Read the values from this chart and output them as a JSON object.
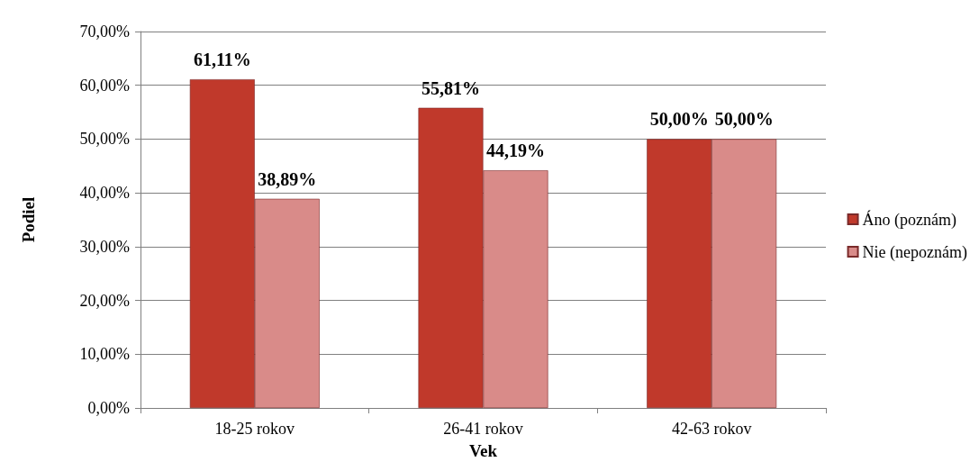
{
  "chart_data": {
    "type": "bar",
    "xlabel": "Vek",
    "ylabel": "Podiel",
    "categories": [
      "18-25 rokov",
      "26-41 rokov",
      "42-63 rokov"
    ],
    "series": [
      {
        "name": "Áno (poznám)",
        "color": "#c0392b",
        "values": [
          61.11,
          55.81,
          50.0
        ],
        "value_labels": [
          "61,11%",
          "55,81%",
          "50,00%"
        ]
      },
      {
        "name": "Nie (nepoznám)",
        "color": "#d98b89",
        "values": [
          38.89,
          44.19,
          50.0
        ],
        "value_labels": [
          "38,89%",
          "44,19%",
          "50,00%"
        ]
      }
    ],
    "ylim": [
      0,
      70
    ],
    "yticks": [
      {
        "value": 0,
        "label": "0,00%"
      },
      {
        "value": 10,
        "label": "10,00%"
      },
      {
        "value": 20,
        "label": "20,00%"
      },
      {
        "value": 30,
        "label": "30,00%"
      },
      {
        "value": 40,
        "label": "40,00%"
      },
      {
        "value": 50,
        "label": "50,00%"
      },
      {
        "value": 60,
        "label": "60,00%"
      },
      {
        "value": 70,
        "label": "70,00%"
      }
    ],
    "grid": "y",
    "legend": "right"
  }
}
